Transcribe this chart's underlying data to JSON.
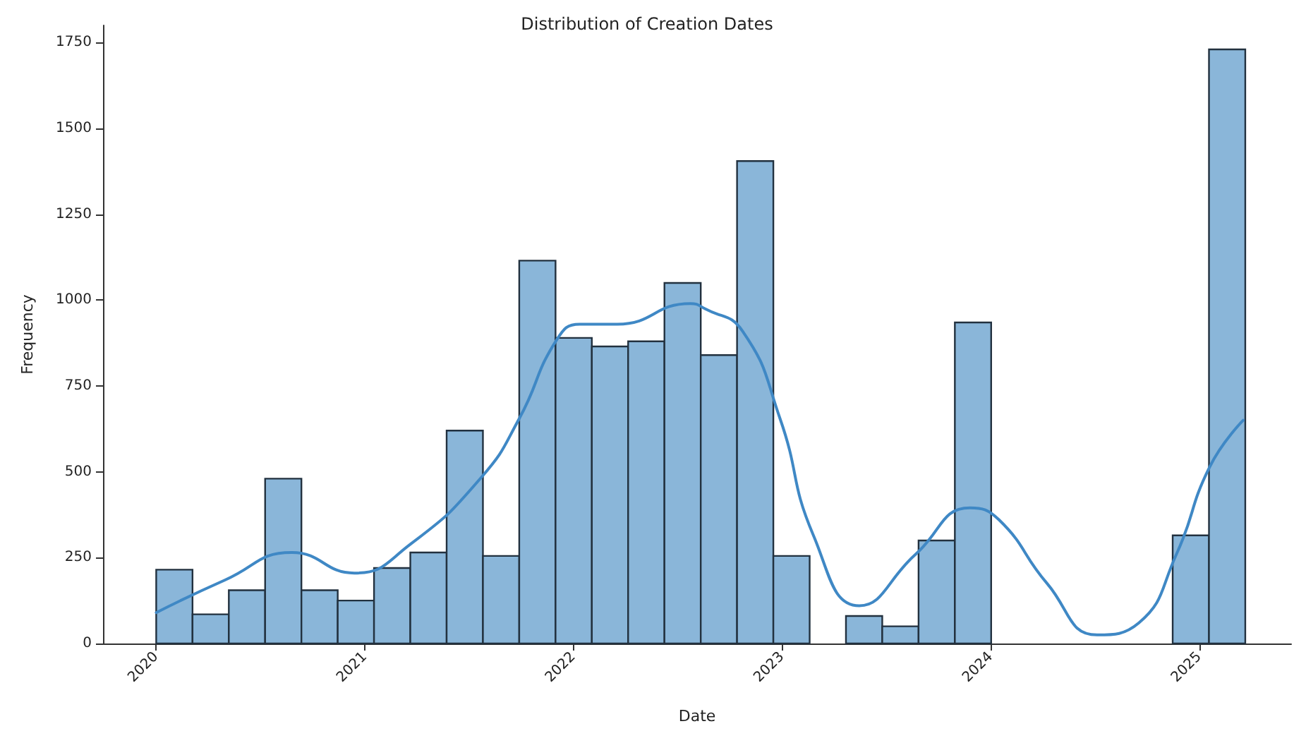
{
  "chart_data": {
    "type": "histogram",
    "title": "Distribution of Creation Dates",
    "xlabel": "Date",
    "ylabel": "Frequency",
    "bins": [
      2020,
      2020.174,
      2020.348,
      2020.522,
      2020.696,
      2020.87,
      2021.044,
      2021.218,
      2021.392,
      2021.566,
      2021.74,
      2021.914,
      2022.088,
      2022.262,
      2022.436,
      2022.61,
      2022.784,
      2022.958,
      2023.132,
      2023.306,
      2023.48,
      2023.654,
      2023.828,
      2024.002,
      2024.176,
      2024.35,
      2024.524,
      2024.698,
      2024.872,
      2025.046,
      2025.22
    ],
    "values": [
      215,
      85,
      155,
      480,
      155,
      125,
      220,
      265,
      620,
      255,
      1115,
      890,
      865,
      880,
      1050,
      840,
      1405,
      255,
      0,
      80,
      50,
      300,
      935,
      0,
      0,
      0,
      0,
      0,
      315,
      1730
    ],
    "color": "#8ab6d9",
    "series": [
      {
        "type": "line",
        "color": "#3f88c5",
        "x": [
          2020.0,
          2020.33,
          2020.65,
          2020.95,
          2021.22,
          2021.56,
          2021.74,
          2021.92,
          2022.03,
          2022.21,
          2022.56,
          2022.63,
          2022.81,
          2022.99,
          2023.15,
          2023.37,
          2023.64,
          2023.9,
          2024.04,
          2024.27,
          2024.51,
          2024.71,
          2024.89,
          2025.05,
          2025.21
        ],
        "values": [
          90,
          185,
          265,
          205,
          290,
          485,
          655,
          885,
          930,
          930,
          990,
          975,
          910,
          655,
          315,
          110,
          260,
          395,
          360,
          175,
          25,
          60,
          260,
          515,
          650
        ]
      }
    ],
    "xlim": [
      2019.745,
      2025.44
    ],
    "xticks": [
      2020,
      2021,
      2022,
      2023,
      2024,
      2025
    ],
    "ylim": [
      0,
      1800
    ],
    "yticks": [
      0,
      250,
      500,
      750,
      1000,
      1250,
      1500,
      1750
    ],
    "grid": false,
    "marker": "none",
    "line_style": "solid"
  }
}
